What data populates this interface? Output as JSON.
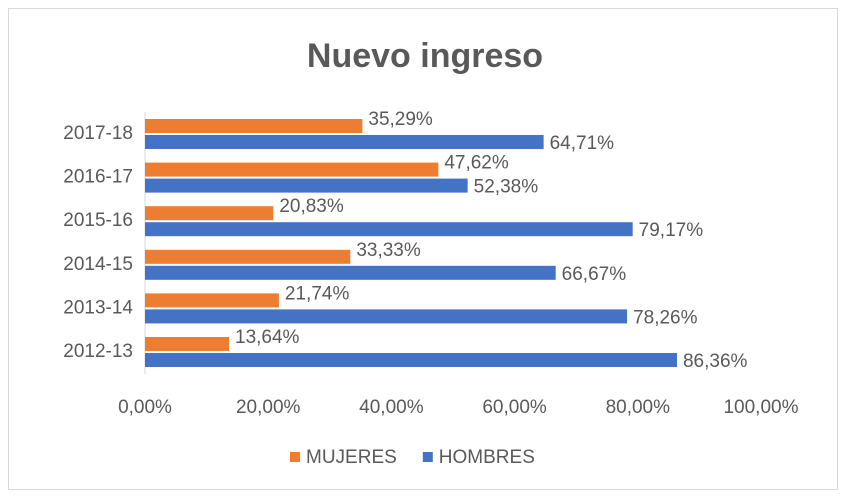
{
  "chart_data": {
    "type": "hbar",
    "title": "Nuevo ingreso",
    "categories": [
      "2012-13",
      "2013-14",
      "2014-15",
      "2015-16",
      "2016-17",
      "2017-18"
    ],
    "series": [
      {
        "name": "MUJERES",
        "color": "#ed7d31",
        "values": [
          13.64,
          21.74,
          33.33,
          20.83,
          47.62,
          35.29
        ],
        "value_labels": [
          "13,64%",
          "21,74%",
          "33,33%",
          "20,83%",
          "47,62%",
          "35,29%"
        ]
      },
      {
        "name": "HOMBRES",
        "color": "#4472c4",
        "values": [
          86.36,
          78.26,
          66.67,
          79.17,
          52.38,
          64.71
        ],
        "value_labels": [
          "86,36%",
          "78,26%",
          "66,67%",
          "79,17%",
          "52,38%",
          "64,71%"
        ]
      }
    ],
    "xlim": [
      0,
      100
    ],
    "xticks": [
      {
        "value": 0,
        "label": "0,00%"
      },
      {
        "value": 20,
        "label": "20,00%"
      },
      {
        "value": 40,
        "label": "40,00%"
      },
      {
        "value": 60,
        "label": "60,00%"
      },
      {
        "value": 80,
        "label": "80,00%"
      },
      {
        "value": 100,
        "label": "100,00%"
      }
    ],
    "legend": "bottom"
  }
}
